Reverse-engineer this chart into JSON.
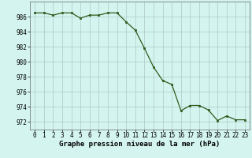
{
  "x": [
    0,
    1,
    2,
    3,
    4,
    5,
    6,
    7,
    8,
    9,
    10,
    11,
    12,
    13,
    14,
    15,
    16,
    17,
    18,
    19,
    20,
    21,
    22,
    23
  ],
  "y": [
    986.5,
    986.5,
    986.2,
    986.5,
    986.5,
    985.8,
    986.2,
    986.2,
    986.5,
    986.5,
    985.3,
    984.2,
    981.8,
    979.3,
    977.5,
    977.0,
    973.5,
    974.2,
    974.2,
    973.6,
    972.2,
    972.8,
    972.3,
    972.3
  ],
  "line_color": "#2d5a1b",
  "marker": "s",
  "marker_size": 2.0,
  "bg_color": "#d4f5ef",
  "grid_color": "#b0c8c4",
  "xlabel": "Graphe pression niveau de la mer (hPa)",
  "xlabel_fontsize": 6.5,
  "xlabel_bold": true,
  "ylim": [
    971,
    988
  ],
  "xlim": [
    -0.5,
    23.5
  ],
  "yticks": [
    972,
    974,
    976,
    978,
    980,
    982,
    984,
    986
  ],
  "xticks": [
    0,
    1,
    2,
    3,
    4,
    5,
    6,
    7,
    8,
    9,
    10,
    11,
    12,
    13,
    14,
    15,
    16,
    17,
    18,
    19,
    20,
    21,
    22,
    23
  ],
  "tick_fontsize": 5.5,
  "figsize": [
    3.2,
    2.0
  ],
  "dpi": 100
}
